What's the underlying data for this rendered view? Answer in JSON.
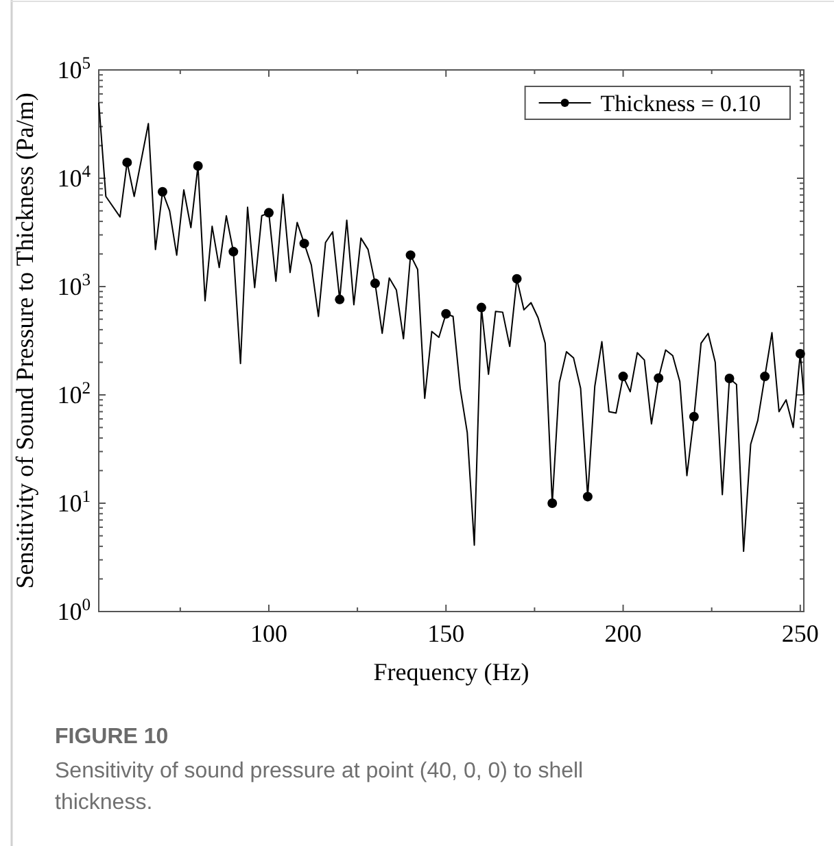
{
  "chart_data": {
    "type": "line",
    "xlabel": "Frequency (Hz)",
    "ylabel": "Sensitivity of Sound Pressure to Thickness (Pa/m)",
    "log": "y",
    "xlim": [
      52,
      251
    ],
    "ylim": [
      1,
      100000
    ],
    "xticks": [
      {
        "value": 75,
        "label": null
      },
      100,
      {
        "value": 125,
        "label": null
      },
      150,
      {
        "value": 175,
        "label": null
      },
      200,
      {
        "value": 225,
        "label": null
      },
      250
    ],
    "yticks": [
      {
        "value": 1,
        "label": "10$^{0}$"
      },
      {
        "value": 2,
        "label": null
      },
      {
        "value": 3,
        "label": null
      },
      {
        "value": 4,
        "label": null
      },
      {
        "value": 5,
        "label": null
      },
      {
        "value": 6,
        "label": null
      },
      {
        "value": 7,
        "label": null
      },
      {
        "value": 8,
        "label": null
      },
      {
        "value": 9,
        "label": null
      },
      {
        "value": 10,
        "label": "10$^{1}$"
      },
      {
        "value": 20,
        "label": null
      },
      {
        "value": 30,
        "label": null
      },
      {
        "value": 40,
        "label": null
      },
      {
        "value": 50,
        "label": null
      },
      {
        "value": 60,
        "label": null
      },
      {
        "value": 70,
        "label": null
      },
      {
        "value": 80,
        "label": null
      },
      {
        "value": 90,
        "label": null
      },
      {
        "value": 100,
        "label": "10$^{2}$"
      },
      {
        "value": 200,
        "label": null
      },
      {
        "value": 300,
        "label": null
      },
      {
        "value": 400,
        "label": null
      },
      {
        "value": 500,
        "label": null
      },
      {
        "value": 600,
        "label": null
      },
      {
        "value": 700,
        "label": null
      },
      {
        "value": 800,
        "label": null
      },
      {
        "value": 900,
        "label": null
      },
      {
        "value": 1000,
        "label": "10$^{3}$"
      },
      {
        "value": 2000,
        "label": null
      },
      {
        "value": 3000,
        "label": null
      },
      {
        "value": 4000,
        "label": null
      },
      {
        "value": 5000,
        "label": null
      },
      {
        "value": 6000,
        "label": null
      },
      {
        "value": 7000,
        "label": null
      },
      {
        "value": 8000,
        "label": null
      },
      {
        "value": 9000,
        "label": null
      },
      {
        "value": 10000,
        "label": "10$^{4}$"
      },
      {
        "value": 20000,
        "label": null
      },
      {
        "value": 30000,
        "label": null
      },
      {
        "value": 40000,
        "label": null
      },
      {
        "value": 50000,
        "label": null
      },
      {
        "value": 60000,
        "label": null
      },
      {
        "value": 70000,
        "label": null
      },
      {
        "value": 80000,
        "label": null
      },
      {
        "value": 90000,
        "label": null
      },
      {
        "value": 100000,
        "label": "10$^{5}$"
      }
    ],
    "grid": false,
    "legend": "top right",
    "marker": "circle",
    "line_style": "solid",
    "annotations": [
      "FIGURE 10",
      "Sensitivity of sound pressure at point (40, 0, 0) to shell thickness."
    ],
    "series": [
      {
        "name": "Thickness = 0.10",
        "type": "line",
        "marker": "none",
        "color": "#000000",
        "x": [
          52,
          54,
          58,
          60,
          62,
          66,
          68,
          70,
          72,
          74,
          76,
          78,
          80,
          82,
          84,
          86,
          88,
          90,
          92,
          94,
          96,
          98,
          100,
          102,
          104,
          106,
          108,
          110,
          112,
          114,
          116,
          118,
          120,
          122,
          124,
          126,
          128,
          130,
          132,
          134,
          136,
          138,
          140,
          142,
          144,
          146,
          148,
          150,
          152,
          154,
          156,
          158,
          160,
          162,
          164,
          166,
          168,
          170,
          172,
          174,
          176,
          178,
          180,
          182,
          184,
          186,
          188,
          190,
          192,
          194,
          196,
          198,
          200,
          202,
          204,
          206,
          208,
          210,
          212,
          214,
          216,
          218,
          220,
          222,
          224,
          226,
          228,
          230,
          232,
          234,
          236,
          238,
          240,
          242,
          244,
          246,
          248,
          250,
          251
        ],
        "values": [
          50000,
          6800,
          4400,
          14000,
          6800,
          32000,
          2200,
          7500,
          5000,
          1950,
          7800,
          3500,
          13000,
          740,
          3600,
          1500,
          4500,
          2100,
          195,
          5400,
          980,
          4500,
          4800,
          1120,
          7100,
          1350,
          3900,
          2500,
          1580,
          530,
          2550,
          3200,
          760,
          4100,
          680,
          2800,
          2200,
          1070,
          370,
          1200,
          930,
          330,
          1950,
          1440,
          93,
          385,
          340,
          560,
          530,
          115,
          45,
          4.1,
          640,
          155,
          590,
          580,
          280,
          1180,
          610,
          710,
          515,
          300,
          10,
          130,
          250,
          220,
          115,
          11.5,
          120,
          310,
          70,
          68,
          148,
          107,
          245,
          210,
          54,
          143,
          260,
          230,
          133,
          18,
          63,
          300,
          370,
          200,
          12,
          142,
          125,
          3.6,
          35,
          58,
          148,
          375,
          70,
          90,
          50,
          240,
          100
        ]
      },
      {
        "type": "scatter",
        "color": "#000000",
        "x": [
          60,
          70,
          80,
          90,
          100,
          110,
          120,
          130,
          140,
          150,
          160,
          170,
          180,
          190,
          200,
          210,
          220,
          230,
          240,
          250
        ],
        "values": [
          14000,
          7500,
          13000,
          2100,
          4800,
          2500,
          760,
          1070,
          1950,
          560,
          640,
          1180,
          10,
          11.5,
          148,
          143,
          63,
          142,
          148,
          240
        ]
      }
    ]
  }
}
